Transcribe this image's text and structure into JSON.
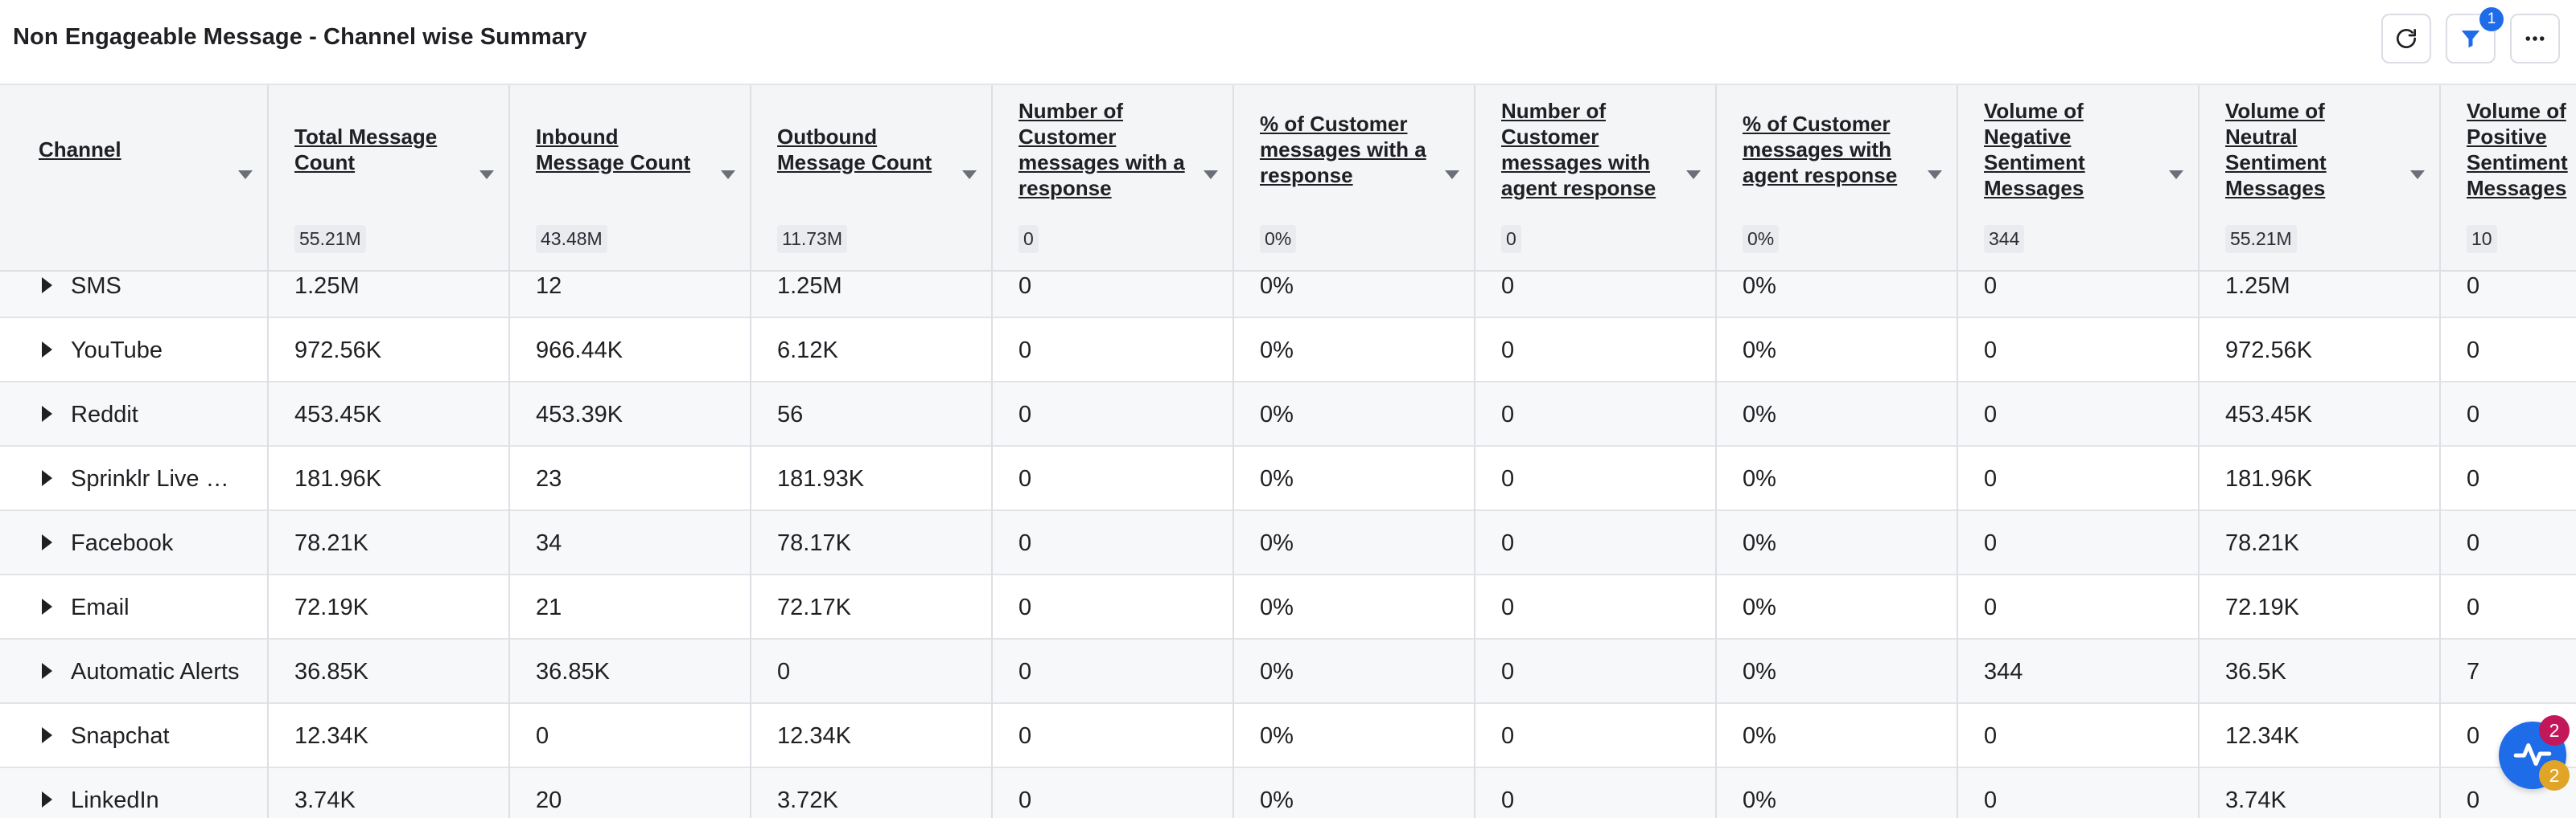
{
  "page": {
    "title": "Non Engageable Message - Channel wise Summary"
  },
  "toolbar": {
    "refresh_icon": "refresh-icon",
    "filter_icon": "filter-icon",
    "filter_count": "1",
    "more_icon": "more-horizontal-icon"
  },
  "columns": [
    {
      "label": "Channel",
      "total": ""
    },
    {
      "label": "Total Message Count",
      "total": "55.21M"
    },
    {
      "label": "Inbound Message Count",
      "total": "43.48M"
    },
    {
      "label": "Outbound Message Count",
      "total": "11.73M"
    },
    {
      "label": "Number of Customer messages with a response",
      "total": "0"
    },
    {
      "label": "% of Customer messages with a response",
      "total": "0%"
    },
    {
      "label": "Number of Customer messages with agent response",
      "total": "0"
    },
    {
      "label": "% of Customer messages with agent response",
      "total": "0%"
    },
    {
      "label": "Volume of Negative Sentiment Messages",
      "total": "344"
    },
    {
      "label": "Volume of Neutral Sentiment Messages",
      "total": "55.21M"
    },
    {
      "label": "Volume of Positive Sentiment Messages",
      "total": "10"
    }
  ],
  "rows": [
    {
      "channel": "SMS",
      "values": [
        "1.25M",
        "12",
        "1.25M",
        "0",
        "0%",
        "0",
        "0%",
        "0",
        "1.25M",
        "0"
      ]
    },
    {
      "channel": "YouTube",
      "values": [
        "972.56K",
        "966.44K",
        "6.12K",
        "0",
        "0%",
        "0",
        "0%",
        "0",
        "972.56K",
        "0"
      ]
    },
    {
      "channel": "Reddit",
      "values": [
        "453.45K",
        "453.39K",
        "56",
        "0",
        "0%",
        "0",
        "0%",
        "0",
        "453.45K",
        "0"
      ]
    },
    {
      "channel": "Sprinklr Live C...",
      "values": [
        "181.96K",
        "23",
        "181.93K",
        "0",
        "0%",
        "0",
        "0%",
        "0",
        "181.96K",
        "0"
      ]
    },
    {
      "channel": "Facebook",
      "values": [
        "78.21K",
        "34",
        "78.17K",
        "0",
        "0%",
        "0",
        "0%",
        "0",
        "78.21K",
        "0"
      ]
    },
    {
      "channel": "Email",
      "values": [
        "72.19K",
        "21",
        "72.17K",
        "0",
        "0%",
        "0",
        "0%",
        "0",
        "72.19K",
        "0"
      ]
    },
    {
      "channel": "Automatic Alerts",
      "values": [
        "36.85K",
        "36.85K",
        "0",
        "0",
        "0%",
        "0",
        "0%",
        "344",
        "36.5K",
        "7"
      ]
    },
    {
      "channel": "Snapchat",
      "values": [
        "12.34K",
        "0",
        "12.34K",
        "0",
        "0%",
        "0",
        "0%",
        "0",
        "12.34K",
        "0"
      ]
    },
    {
      "channel": "LinkedIn",
      "values": [
        "3.74K",
        "20",
        "3.72K",
        "0",
        "0%",
        "0",
        "0%",
        "0",
        "3.74K",
        "0"
      ]
    }
  ],
  "fab": {
    "icon": "activity-pulse-icon",
    "badge_top": "2",
    "badge_bottom": "2",
    "badge_top_color": "#c2185b",
    "badge_bottom_color": "#e0a526",
    "color": "#1f6ce8"
  }
}
